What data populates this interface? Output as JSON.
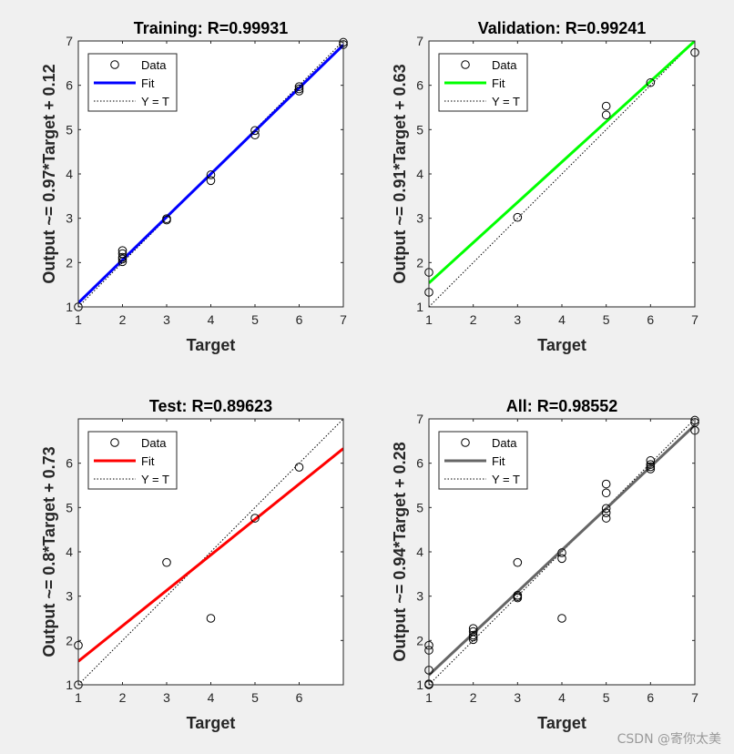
{
  "figure": {
    "background": "#f0f0f0",
    "watermark": "CSDN @寄你太美"
  },
  "chart_data": [
    {
      "type": "scatter",
      "title": "Training: R=0.99931",
      "xlabel": "Target",
      "ylabel": "Output ~= 0.97*Target + 0.12",
      "xlim": [
        1,
        7
      ],
      "ylim": [
        1,
        7
      ],
      "xticks": [
        1,
        2,
        3,
        4,
        5,
        6,
        7
      ],
      "yticks": [
        1,
        2,
        3,
        4,
        5,
        6,
        7
      ],
      "fit_color": "#0000ff",
      "legend": {
        "position": "top-left",
        "entries": [
          "Data",
          "Fit",
          "Y = T"
        ]
      },
      "fit": {
        "slope": 0.97,
        "intercept": 0.12
      },
      "points": [
        [
          1,
          1.0
        ],
        [
          2,
          2.02
        ],
        [
          2,
          2.08
        ],
        [
          2,
          2.12
        ],
        [
          2,
          2.2
        ],
        [
          2,
          2.27
        ],
        [
          3,
          2.96
        ],
        [
          3,
          2.99
        ],
        [
          4,
          3.85
        ],
        [
          4,
          3.98
        ],
        [
          5,
          4.88
        ],
        [
          5,
          4.98
        ],
        [
          6,
          5.87
        ],
        [
          6,
          5.92
        ],
        [
          6,
          5.97
        ],
        [
          7,
          6.92
        ],
        [
          7,
          6.97
        ]
      ]
    },
    {
      "type": "scatter",
      "title": "Validation: R=0.99241",
      "xlabel": "Target",
      "ylabel": "Output ~= 0.91*Target + 0.63",
      "xlim": [
        1,
        7
      ],
      "ylim": [
        1,
        7
      ],
      "xticks": [
        1,
        2,
        3,
        4,
        5,
        6,
        7
      ],
      "yticks": [
        1,
        2,
        3,
        4,
        5,
        6,
        7
      ],
      "fit_color": "#00ff00",
      "legend": {
        "position": "top-left",
        "entries": [
          "Data",
          "Fit",
          "Y = T"
        ]
      },
      "fit": {
        "slope": 0.91,
        "intercept": 0.63
      },
      "points": [
        [
          1,
          1.33
        ],
        [
          1,
          1.78
        ],
        [
          3,
          3.02
        ],
        [
          5,
          5.33
        ],
        [
          5,
          5.53
        ],
        [
          6,
          6.06
        ],
        [
          7,
          6.74
        ]
      ]
    },
    {
      "type": "scatter",
      "title": "Test: R=0.89623",
      "xlabel": "Target",
      "ylabel": "Output ~= 0.8*Target + 0.73",
      "xlim": [
        1,
        7
      ],
      "ylim": [
        1,
        7
      ],
      "xticks": [
        1,
        2,
        3,
        4,
        5,
        6
      ],
      "yticks": [
        1,
        2,
        3,
        4,
        5,
        6
      ],
      "fit_color": "#ff0000",
      "legend": {
        "position": "top-left",
        "entries": [
          "Data",
          "Fit",
          "Y = T"
        ]
      },
      "fit": {
        "slope": 0.8,
        "intercept": 0.73
      },
      "points": [
        [
          1,
          1.0
        ],
        [
          1,
          1.89
        ],
        [
          3,
          3.76
        ],
        [
          4,
          2.5
        ],
        [
          5,
          4.76
        ],
        [
          6,
          5.91
        ]
      ]
    },
    {
      "type": "scatter",
      "title": "All: R=0.98552",
      "xlabel": "Target",
      "ylabel": "Output ~= 0.94*Target + 0.28",
      "xlim": [
        1,
        7
      ],
      "ylim": [
        1,
        7
      ],
      "xticks": [
        1,
        2,
        3,
        4,
        5,
        6,
        7
      ],
      "yticks": [
        1,
        2,
        3,
        4,
        5,
        6,
        7
      ],
      "fit_color": "#666666",
      "legend": {
        "position": "top-left",
        "entries": [
          "Data",
          "Fit",
          "Y = T"
        ]
      },
      "fit": {
        "slope": 0.94,
        "intercept": 0.28
      },
      "points": [
        [
          1,
          1.0
        ],
        [
          1,
          1.02
        ],
        [
          1,
          1.33
        ],
        [
          1,
          1.78
        ],
        [
          1,
          1.89
        ],
        [
          2,
          2.02
        ],
        [
          2,
          2.08
        ],
        [
          2,
          2.12
        ],
        [
          2,
          2.2
        ],
        [
          2,
          2.27
        ],
        [
          3,
          2.96
        ],
        [
          3,
          2.99
        ],
        [
          3,
          3.02
        ],
        [
          3,
          3.76
        ],
        [
          4,
          2.5
        ],
        [
          4,
          3.85
        ],
        [
          4,
          3.98
        ],
        [
          5,
          4.76
        ],
        [
          5,
          4.88
        ],
        [
          5,
          4.98
        ],
        [
          5,
          5.33
        ],
        [
          5,
          5.53
        ],
        [
          6,
          5.87
        ],
        [
          6,
          5.92
        ],
        [
          6,
          5.97
        ],
        [
          6,
          6.06
        ],
        [
          7,
          6.74
        ],
        [
          7,
          6.92
        ],
        [
          7,
          6.97
        ]
      ]
    }
  ]
}
